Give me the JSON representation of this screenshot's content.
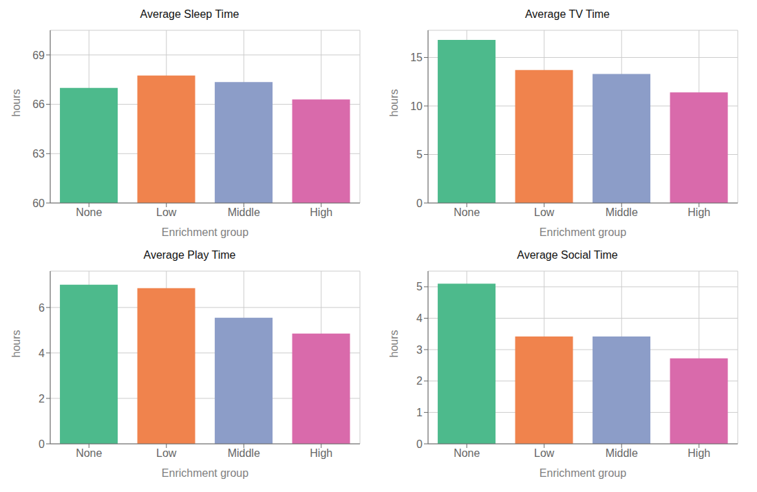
{
  "chart_data": [
    {
      "type": "bar",
      "title": "Average Sleep Time",
      "categories": [
        "None",
        "Low",
        "Middle",
        "High"
      ],
      "values": [
        67.0,
        67.75,
        67.35,
        66.3
      ],
      "colors": [
        "#4dba8c",
        "#f0834d",
        "#8c9dc8",
        "#d96aab"
      ],
      "ylim": [
        60,
        70.5
      ],
      "yticks": [
        60,
        63,
        66,
        69
      ],
      "ylabel": "hours",
      "xlabel": "Enrichment group",
      "grid": true
    },
    {
      "type": "bar",
      "title": "Average TV Time",
      "categories": [
        "None",
        "Low",
        "Middle",
        "High"
      ],
      "values": [
        16.8,
        13.7,
        13.3,
        11.4
      ],
      "colors": [
        "#4dba8c",
        "#f0834d",
        "#8c9dc8",
        "#d96aab"
      ],
      "ylim": [
        0,
        17.8
      ],
      "yticks": [
        0,
        5,
        10,
        15
      ],
      "ylabel": "hours",
      "xlabel": "Enrichment group",
      "grid": true
    },
    {
      "type": "bar",
      "title": "Average Play Time",
      "categories": [
        "None",
        "Low",
        "Middle",
        "High"
      ],
      "values": [
        7.0,
        6.85,
        5.55,
        4.85
      ],
      "colors": [
        "#4dba8c",
        "#f0834d",
        "#8c9dc8",
        "#d96aab"
      ],
      "ylim": [
        0,
        7.6
      ],
      "yticks": [
        0,
        2,
        4,
        6
      ],
      "ylabel": "hours",
      "xlabel": "Enrichment group",
      "grid": true
    },
    {
      "type": "bar",
      "title": "Average Social Time",
      "categories": [
        "None",
        "Low",
        "Middle",
        "High"
      ],
      "values": [
        5.1,
        3.42,
        3.42,
        2.72
      ],
      "colors": [
        "#4dba8c",
        "#f0834d",
        "#8c9dc8",
        "#d96aab"
      ],
      "ylim": [
        0,
        5.5
      ],
      "yticks": [
        0,
        1,
        2,
        3,
        4,
        5
      ],
      "ylabel": "hours",
      "xlabel": "Enrichment group",
      "grid": true
    }
  ]
}
